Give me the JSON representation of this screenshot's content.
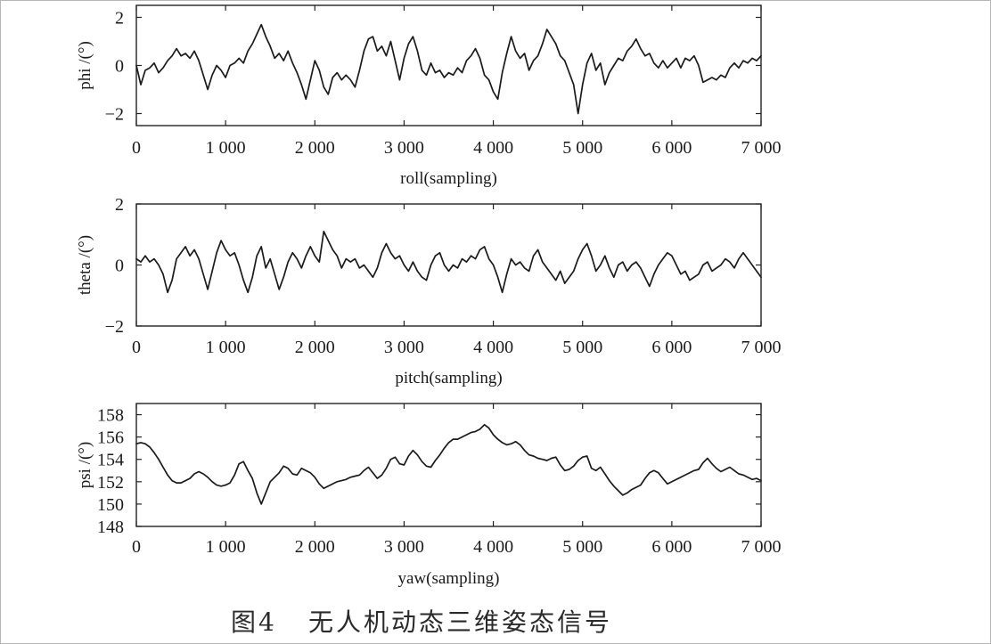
{
  "figure": {
    "number": "图4",
    "caption": "无人机动态三维姿态信号"
  },
  "chart_data": [
    {
      "type": "line",
      "ylabel": "phi /(°)",
      "xlabel": "roll(sampling)",
      "xlim": [
        0,
        7000
      ],
      "ylim": [
        -2.5,
        2.5
      ],
      "grid": false,
      "line_color": "#1a1a1a",
      "x_ticks": [
        0,
        1000,
        2000,
        3000,
        4000,
        5000,
        6000,
        7000
      ],
      "x_tick_labels": [
        "0",
        "1 000",
        "2 000",
        "3 000",
        "4 000",
        "5 000",
        "6 000",
        "7 000"
      ],
      "y_ticks": [
        2,
        0,
        -2
      ],
      "y_tick_labels": [
        "2",
        "0",
        "−2"
      ],
      "x": [
        0,
        50,
        100,
        150,
        200,
        250,
        300,
        350,
        400,
        450,
        500,
        550,
        600,
        650,
        700,
        750,
        800,
        850,
        900,
        950,
        1000,
        1050,
        1100,
        1150,
        1200,
        1250,
        1300,
        1350,
        1400,
        1450,
        1500,
        1550,
        1600,
        1650,
        1700,
        1750,
        1800,
        1850,
        1900,
        1950,
        2000,
        2050,
        2100,
        2150,
        2200,
        2250,
        2300,
        2350,
        2400,
        2450,
        2500,
        2550,
        2600,
        2650,
        2700,
        2750,
        2800,
        2850,
        2900,
        2950,
        3000,
        3050,
        3100,
        3150,
        3200,
        3250,
        3300,
        3350,
        3400,
        3450,
        3500,
        3550,
        3600,
        3650,
        3700,
        3750,
        3800,
        3850,
        3900,
        3950,
        4000,
        4050,
        4100,
        4150,
        4200,
        4250,
        4300,
        4350,
        4400,
        4450,
        4500,
        4550,
        4600,
        4650,
        4700,
        4750,
        4800,
        4850,
        4900,
        4950,
        5000,
        5050,
        5100,
        5150,
        5200,
        5250,
        5300,
        5350,
        5400,
        5450,
        5500,
        5550,
        5600,
        5650,
        5700,
        5750,
        5800,
        5850,
        5900,
        5950,
        6000,
        6050,
        6100,
        6150,
        6200,
        6250,
        6300,
        6350,
        6400,
        6450,
        6500,
        6550,
        6600,
        6650,
        6700,
        6750,
        6800,
        6850,
        6900,
        6950,
        7000
      ],
      "series": [
        {
          "values": [
            0.0,
            -0.8,
            -0.2,
            -0.1,
            0.1,
            -0.3,
            -0.1,
            0.2,
            0.4,
            0.7,
            0.4,
            0.5,
            0.3,
            0.6,
            0.2,
            -0.4,
            -1.0,
            -0.4,
            0.0,
            -0.2,
            -0.5,
            0.0,
            0.1,
            0.3,
            0.1,
            0.6,
            0.9,
            1.3,
            1.7,
            1.2,
            0.8,
            0.3,
            0.5,
            0.2,
            0.6,
            0.1,
            -0.3,
            -0.8,
            -1.4,
            -0.6,
            0.2,
            -0.2,
            -0.9,
            -1.2,
            -0.5,
            -0.3,
            -0.6,
            -0.4,
            -0.6,
            -0.9,
            -0.2,
            0.6,
            1.1,
            1.2,
            0.6,
            0.8,
            0.4,
            1.0,
            0.2,
            -0.6,
            0.3,
            0.9,
            1.2,
            0.6,
            -0.2,
            -0.4,
            0.1,
            -0.3,
            -0.2,
            -0.5,
            -0.3,
            -0.4,
            -0.1,
            -0.3,
            0.2,
            0.4,
            0.7,
            0.3,
            -0.4,
            -0.6,
            -1.1,
            -1.4,
            -0.3,
            0.5,
            1.2,
            0.6,
            0.3,
            0.5,
            -0.2,
            0.2,
            0.4,
            0.9,
            1.5,
            1.2,
            0.9,
            0.4,
            0.2,
            -0.3,
            -0.8,
            -2.0,
            -0.8,
            0.1,
            0.5,
            -0.2,
            0.1,
            -0.8,
            -0.3,
            0.0,
            0.3,
            0.2,
            0.6,
            0.8,
            1.1,
            0.7,
            0.4,
            0.5,
            0.1,
            -0.1,
            0.2,
            -0.1,
            0.1,
            0.3,
            -0.1,
            0.3,
            0.2,
            0.4,
            0.0,
            -0.7,
            -0.6,
            -0.5,
            -0.6,
            -0.4,
            -0.5,
            -0.1,
            0.1,
            -0.1,
            0.2,
            0.1,
            0.3,
            0.2,
            0.4
          ]
        }
      ]
    },
    {
      "type": "line",
      "ylabel": "theta /(°)",
      "xlabel": "pitch(sampling)",
      "xlim": [
        0,
        7000
      ],
      "ylim": [
        -2,
        2
      ],
      "grid": false,
      "line_color": "#1a1a1a",
      "x_ticks": [
        0,
        1000,
        2000,
        3000,
        4000,
        5000,
        6000,
        7000
      ],
      "x_tick_labels": [
        "0",
        "1 000",
        "2 000",
        "3 000",
        "4 000",
        "5 000",
        "6 000",
        "7 000"
      ],
      "y_ticks": [
        2,
        0,
        -2
      ],
      "y_tick_labels": [
        "2",
        "0",
        "−2"
      ],
      "x": [
        0,
        50,
        100,
        150,
        200,
        250,
        300,
        350,
        400,
        450,
        500,
        550,
        600,
        650,
        700,
        750,
        800,
        850,
        900,
        950,
        1000,
        1050,
        1100,
        1150,
        1200,
        1250,
        1300,
        1350,
        1400,
        1450,
        1500,
        1550,
        1600,
        1650,
        1700,
        1750,
        1800,
        1850,
        1900,
        1950,
        2000,
        2050,
        2100,
        2150,
        2200,
        2250,
        2300,
        2350,
        2400,
        2450,
        2500,
        2550,
        2600,
        2650,
        2700,
        2750,
        2800,
        2850,
        2900,
        2950,
        3000,
        3050,
        3100,
        3150,
        3200,
        3250,
        3300,
        3350,
        3400,
        3450,
        3500,
        3550,
        3600,
        3650,
        3700,
        3750,
        3800,
        3850,
        3900,
        3950,
        4000,
        4050,
        4100,
        4150,
        4200,
        4250,
        4300,
        4350,
        4400,
        4450,
        4500,
        4550,
        4600,
        4650,
        4700,
        4750,
        4800,
        4850,
        4900,
        4950,
        5000,
        5050,
        5100,
        5150,
        5200,
        5250,
        5300,
        5350,
        5400,
        5450,
        5500,
        5550,
        5600,
        5650,
        5700,
        5750,
        5800,
        5850,
        5900,
        5950,
        6000,
        6050,
        6100,
        6150,
        6200,
        6250,
        6300,
        6350,
        6400,
        6450,
        6500,
        6550,
        6600,
        6650,
        6700,
        6750,
        6800,
        6850,
        6900,
        6950,
        7000
      ],
      "series": [
        {
          "values": [
            0.2,
            0.1,
            0.3,
            0.1,
            0.2,
            0.0,
            -0.3,
            -0.9,
            -0.5,
            0.2,
            0.4,
            0.6,
            0.3,
            0.5,
            0.2,
            -0.3,
            -0.8,
            -0.2,
            0.4,
            0.8,
            0.5,
            0.3,
            0.4,
            0.0,
            -0.5,
            -0.9,
            -0.4,
            0.3,
            0.6,
            -0.1,
            0.2,
            -0.3,
            -0.8,
            -0.4,
            0.1,
            0.4,
            0.2,
            -0.1,
            0.3,
            0.6,
            0.3,
            0.1,
            1.1,
            0.8,
            0.5,
            0.3,
            -0.1,
            0.2,
            0.1,
            0.2,
            -0.1,
            0.0,
            -0.2,
            -0.4,
            -0.1,
            0.4,
            0.7,
            0.4,
            0.2,
            0.3,
            0.0,
            -0.2,
            0.1,
            -0.2,
            -0.4,
            -0.5,
            0.0,
            0.3,
            0.4,
            0.0,
            -0.2,
            0.0,
            -0.1,
            0.2,
            0.1,
            0.3,
            0.2,
            0.5,
            0.6,
            0.2,
            0.0,
            -0.4,
            -0.9,
            -0.3,
            0.2,
            0.0,
            0.1,
            -0.1,
            -0.2,
            0.3,
            0.5,
            0.1,
            -0.1,
            -0.3,
            -0.5,
            -0.2,
            -0.6,
            -0.4,
            -0.2,
            0.2,
            0.5,
            0.7,
            0.3,
            -0.2,
            0.0,
            0.3,
            -0.1,
            -0.4,
            0.0,
            0.1,
            -0.2,
            0.0,
            0.1,
            -0.1,
            -0.4,
            -0.7,
            -0.3,
            0.0,
            0.2,
            0.4,
            0.3,
            0.0,
            -0.3,
            -0.2,
            -0.5,
            -0.4,
            -0.3,
            0.0,
            0.1,
            -0.2,
            -0.1,
            0.0,
            0.2,
            0.1,
            -0.1,
            0.2,
            0.4,
            0.2,
            0.0,
            -0.2,
            -0.4
          ]
        }
      ]
    },
    {
      "type": "line",
      "ylabel": "psi /(°)",
      "xlabel": "yaw(sampling)",
      "xlim": [
        0,
        7000
      ],
      "ylim": [
        148,
        159
      ],
      "grid": false,
      "line_color": "#1a1a1a",
      "x_ticks": [
        0,
        1000,
        2000,
        3000,
        4000,
        5000,
        6000,
        7000
      ],
      "x_tick_labels": [
        "0",
        "1 000",
        "2 000",
        "3 000",
        "4 000",
        "5 000",
        "6 000",
        "7 000"
      ],
      "y_ticks": [
        158,
        156,
        154,
        152,
        150,
        148
      ],
      "y_tick_labels": [
        "158",
        "156",
        "154",
        "152",
        "150",
        "148"
      ],
      "x": [
        0,
        50,
        100,
        150,
        200,
        250,
        300,
        350,
        400,
        450,
        500,
        550,
        600,
        650,
        700,
        750,
        800,
        850,
        900,
        950,
        1000,
        1050,
        1100,
        1150,
        1200,
        1250,
        1300,
        1350,
        1400,
        1450,
        1500,
        1550,
        1600,
        1650,
        1700,
        1750,
        1800,
        1850,
        1900,
        1950,
        2000,
        2050,
        2100,
        2150,
        2200,
        2250,
        2300,
        2350,
        2400,
        2450,
        2500,
        2550,
        2600,
        2650,
        2700,
        2750,
        2800,
        2850,
        2900,
        2950,
        3000,
        3050,
        3100,
        3150,
        3200,
        3250,
        3300,
        3350,
        3400,
        3450,
        3500,
        3550,
        3600,
        3650,
        3700,
        3750,
        3800,
        3850,
        3900,
        3950,
        4000,
        4050,
        4100,
        4150,
        4200,
        4250,
        4300,
        4350,
        4400,
        4450,
        4500,
        4550,
        4600,
        4650,
        4700,
        4750,
        4800,
        4850,
        4900,
        4950,
        5000,
        5050,
        5100,
        5150,
        5200,
        5250,
        5300,
        5350,
        5400,
        5450,
        5500,
        5550,
        5600,
        5650,
        5700,
        5750,
        5800,
        5850,
        5900,
        5950,
        6000,
        6050,
        6100,
        6150,
        6200,
        6250,
        6300,
        6350,
        6400,
        6450,
        6500,
        6550,
        6600,
        6650,
        6700,
        6750,
        6800,
        6850,
        6900,
        6950,
        7000
      ],
      "series": [
        {
          "values": [
            155.4,
            155.5,
            155.4,
            155.1,
            154.6,
            154.0,
            153.3,
            152.6,
            152.1,
            151.9,
            151.9,
            152.1,
            152.3,
            152.7,
            152.9,
            152.7,
            152.4,
            152.0,
            151.7,
            151.6,
            151.7,
            151.9,
            152.6,
            153.6,
            153.8,
            153.0,
            152.3,
            151.0,
            150.0,
            151.0,
            152.0,
            152.4,
            152.8,
            153.4,
            153.2,
            152.7,
            152.6,
            153.2,
            153.0,
            152.8,
            152.4,
            151.8,
            151.4,
            151.6,
            151.8,
            152.0,
            152.1,
            152.2,
            152.4,
            152.5,
            152.6,
            153.0,
            153.3,
            152.8,
            152.3,
            152.6,
            153.2,
            154.0,
            154.2,
            153.6,
            153.5,
            154.3,
            154.8,
            154.4,
            153.8,
            153.4,
            153.3,
            153.9,
            154.4,
            155.0,
            155.5,
            155.8,
            155.8,
            156.0,
            156.2,
            156.4,
            156.5,
            156.7,
            157.1,
            156.8,
            156.2,
            155.8,
            155.5,
            155.3,
            155.4,
            155.6,
            155.3,
            154.8,
            154.4,
            154.3,
            154.1,
            154.0,
            153.9,
            154.1,
            154.2,
            153.5,
            153.0,
            153.1,
            153.4,
            153.9,
            154.2,
            154.3,
            153.2,
            153.0,
            153.3,
            152.7,
            152.1,
            151.6,
            151.2,
            150.8,
            151.0,
            151.3,
            151.5,
            151.7,
            152.3,
            152.8,
            153.0,
            152.8,
            152.3,
            151.8,
            152.0,
            152.2,
            152.4,
            152.6,
            152.8,
            153.0,
            153.1,
            153.7,
            154.1,
            153.6,
            153.2,
            152.9,
            153.1,
            153.3,
            153.0,
            152.7,
            152.6,
            152.4,
            152.2,
            152.3,
            152.1
          ]
        }
      ]
    }
  ]
}
